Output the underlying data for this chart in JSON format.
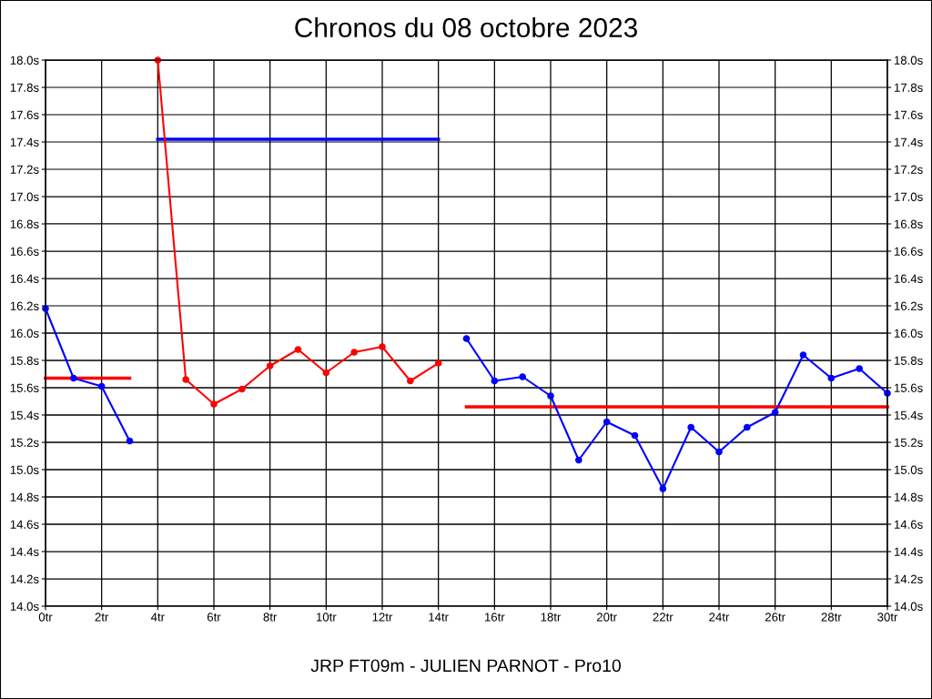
{
  "chart_data": {
    "type": "line",
    "title": "Chronos du 08 octobre 2023",
    "annotations": [
      "JRP FT09m - JULIEN PARNOT - Pro10"
    ],
    "series": [
      {
        "color": "#0000ff",
        "x": [
          0,
          1,
          2,
          3
        ],
        "values": [
          16.18,
          15.67,
          15.61,
          15.21
        ]
      },
      {
        "color": "#ff0000",
        "x": [
          4,
          5,
          6,
          7,
          8,
          9,
          10,
          11,
          12,
          13,
          14
        ],
        "values": [
          18.0,
          15.66,
          15.48,
          15.59,
          15.76,
          15.88,
          15.71,
          15.86,
          15.9,
          15.65,
          15.78
        ]
      },
      {
        "color": "#0000ff",
        "x": [
          15,
          16,
          17,
          18,
          19,
          20,
          21,
          22,
          23,
          24,
          25,
          26,
          27,
          28,
          29,
          30
        ],
        "values": [
          15.96,
          15.65,
          15.68,
          15.54,
          15.07,
          15.35,
          15.25,
          14.86,
          15.31,
          15.13,
          15.31,
          15.42,
          15.84,
          15.67,
          15.74,
          15.56
        ]
      },
      {
        "color": "#ff0000",
        "marker": "none",
        "x": [
          0,
          3
        ],
        "values": [
          15.67,
          15.67
        ]
      },
      {
        "color": "#0000ff",
        "marker": "none",
        "x": [
          4,
          14
        ],
        "values": [
          17.42,
          17.42
        ]
      },
      {
        "color": "#ff0000",
        "marker": "none",
        "x": [
          15,
          30
        ],
        "values": [
          15.46,
          15.46
        ]
      }
    ],
    "xlim": [
      0,
      30
    ],
    "xticks": [
      {
        "value": 0,
        "label": "0tr"
      },
      {
        "value": 2,
        "label": "2tr"
      },
      {
        "value": 4,
        "label": "4tr"
      },
      {
        "value": 6,
        "label": "6tr"
      },
      {
        "value": 8,
        "label": "8tr"
      },
      {
        "value": 10,
        "label": "10tr"
      },
      {
        "value": 12,
        "label": "12tr"
      },
      {
        "value": 14,
        "label": "14tr"
      },
      {
        "value": 16,
        "label": "16tr"
      },
      {
        "value": 18,
        "label": "18tr"
      },
      {
        "value": 20,
        "label": "20tr"
      },
      {
        "value": 22,
        "label": "22tr"
      },
      {
        "value": 24,
        "label": "24tr"
      },
      {
        "value": 26,
        "label": "26tr"
      },
      {
        "value": 28,
        "label": "28tr"
      },
      {
        "value": 30,
        "label": "30tr"
      }
    ],
    "ylim": [
      14.0,
      18.0
    ],
    "yticks": [
      {
        "value": 14.0,
        "label": "14.0s"
      },
      {
        "value": 14.2,
        "label": "14.2s"
      },
      {
        "value": 14.4,
        "label": "14.4s"
      },
      {
        "value": 14.6,
        "label": "14.6s"
      },
      {
        "value": 14.8,
        "label": "14.8s"
      },
      {
        "value": 15.0,
        "label": "15.0s"
      },
      {
        "value": 15.2,
        "label": "15.2s"
      },
      {
        "value": 15.4,
        "label": "15.4s"
      },
      {
        "value": 15.6,
        "label": "15.6s"
      },
      {
        "value": 15.8,
        "label": "15.8s"
      },
      {
        "value": 16.0,
        "label": "16.0s"
      },
      {
        "value": 16.2,
        "label": "16.2s"
      },
      {
        "value": 16.4,
        "label": "16.4s"
      },
      {
        "value": 16.6,
        "label": "16.6s"
      },
      {
        "value": 16.8,
        "label": "16.8s"
      },
      {
        "value": 17.0,
        "label": "17.0s"
      },
      {
        "value": 17.2,
        "label": "17.2s"
      },
      {
        "value": 17.4,
        "label": "17.4s"
      },
      {
        "value": 17.6,
        "label": "17.6s"
      },
      {
        "value": 17.8,
        "label": "17.8s"
      },
      {
        "value": 18.0,
        "label": "18.0s"
      }
    ],
    "y2lim": [
      14.0,
      18.0
    ],
    "y2ticks": [
      {
        "value": 14.0,
        "label": "14.0s"
      },
      {
        "value": 14.2,
        "label": "14.2s"
      },
      {
        "value": 14.4,
        "label": "14.4s"
      },
      {
        "value": 14.6,
        "label": "14.6s"
      },
      {
        "value": 14.8,
        "label": "14.8s"
      },
      {
        "value": 15.0,
        "label": "15.0s"
      },
      {
        "value": 15.2,
        "label": "15.2s"
      },
      {
        "value": 15.4,
        "label": "15.4s"
      },
      {
        "value": 15.6,
        "label": "15.6s"
      },
      {
        "value": 15.8,
        "label": "15.8s"
      },
      {
        "value": 16.0,
        "label": "16.0s"
      },
      {
        "value": 16.2,
        "label": "16.2s"
      },
      {
        "value": 16.4,
        "label": "16.4s"
      },
      {
        "value": 16.6,
        "label": "16.6s"
      },
      {
        "value": 16.8,
        "label": "16.8s"
      },
      {
        "value": 17.0,
        "label": "17.0s"
      },
      {
        "value": 17.2,
        "label": "17.2s"
      },
      {
        "value": 17.4,
        "label": "17.4s"
      },
      {
        "value": 17.6,
        "label": "17.6s"
      },
      {
        "value": 17.8,
        "label": "17.8s"
      },
      {
        "value": 18.0,
        "label": "18.0s"
      }
    ],
    "grid": true,
    "marker": "circle",
    "line_style": "solid"
  }
}
